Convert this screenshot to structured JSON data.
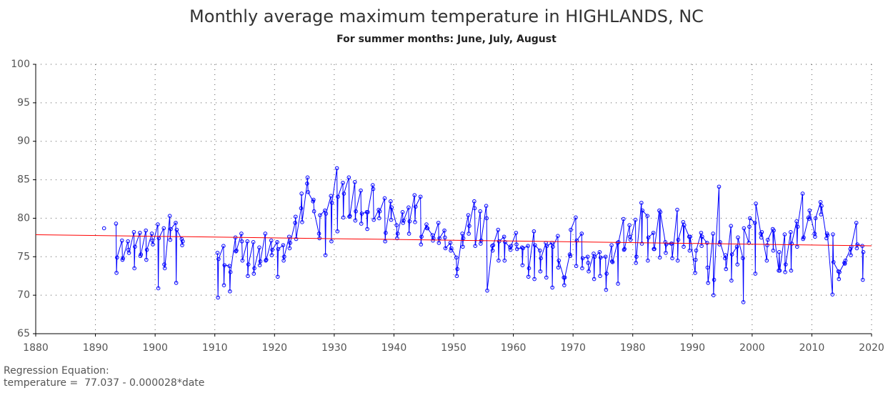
{
  "chart_data": {
    "type": "line",
    "title": "Monthly average maximum temperature in HIGHLANDS, NC",
    "subtitle": "For summer months: June, July, August",
    "annotations": [
      "Regression Equation:",
      "temperature =  77.037 - 0.000028*date"
    ],
    "xlim": [
      1880,
      2020
    ],
    "xticks": [
      1880,
      1890,
      1900,
      1910,
      1920,
      1930,
      1940,
      1950,
      1960,
      1970,
      1980,
      1990,
      2000,
      2010,
      2020
    ],
    "ylim": [
      65,
      100
    ],
    "yticks": [
      65,
      70,
      75,
      80,
      85,
      90,
      95,
      100
    ],
    "grid": true,
    "series": [
      {
        "color": "#0000ff",
        "markers": true,
        "x": [
          1891.45,
          1892,
          1893.45,
          1893.53,
          1893.62,
          1894.45,
          1894.53,
          1894.62,
          1895.45,
          1895.53,
          1895.62,
          1896.45,
          1896.53,
          1896.62,
          1897.45,
          1897.53,
          1897.62,
          1898.45,
          1898.53,
          1898.62,
          1899.45,
          1899.53,
          1899.62,
          1900.45,
          1900.53,
          1900.62,
          1901.45,
          1901.53,
          1901.62,
          1902.45,
          1902.53,
          1902.62,
          1903.45,
          1903.53,
          1903.62,
          1904.45,
          1904.53,
          1904.62,
          1907,
          1910.45,
          1910.53,
          1910.62,
          1911.45,
          1911.53,
          1911.62,
          1912.45,
          1912.53,
          1912.62,
          1913.45,
          1913.53,
          1913.62,
          1914.45,
          1914.53,
          1914.62,
          1915.45,
          1915.53,
          1915.62,
          1916.45,
          1916.53,
          1916.62,
          1917.45,
          1917.53,
          1917.62,
          1918.45,
          1918.53,
          1918.62,
          1919.45,
          1919.53,
          1919.62,
          1920.45,
          1920.53,
          1920.62,
          1921.45,
          1921.53,
          1921.62,
          1922.45,
          1922.53,
          1922.62,
          1923.45,
          1923.53,
          1923.62,
          1924.45,
          1924.53,
          1924.62,
          1925.45,
          1925.53,
          1925.62,
          1926.45,
          1926.53,
          1926.62,
          1927.45,
          1927.53,
          1927.62,
          1928.45,
          1928.53,
          1928.62,
          1929.45,
          1929.53,
          1929.62,
          1930.45,
          1930.53,
          1930.62,
          1931.45,
          1931.53,
          1931.62,
          1932.45,
          1932.53,
          1932.62,
          1933.45,
          1933.53,
          1933.62,
          1934.45,
          1934.53,
          1934.62,
          1935.45,
          1935.53,
          1935.62,
          1936.45,
          1936.53,
          1936.62,
          1937.45,
          1937.53,
          1937.62,
          1938.45,
          1938.53,
          1938.62,
          1939.45,
          1939.53,
          1939.62,
          1940.45,
          1940.53,
          1940.62,
          1941.45,
          1941.53,
          1941.62,
          1942.45,
          1942.53,
          1942.62,
          1943.45,
          1943.53,
          1943.62,
          1944.45,
          1944.53,
          1944.62,
          1945.45,
          1945.53,
          1945.62,
          1946.45,
          1946.53,
          1946.62,
          1947.45,
          1947.53,
          1947.62,
          1948.45,
          1948.53,
          1948.62,
          1949.45,
          1949.53,
          1949.62,
          1950.45,
          1950.53,
          1950.62,
          1951.45,
          1951.53,
          1951.62,
          1952.45,
          1952.53,
          1952.62,
          1953.45,
          1953.53,
          1953.62,
          1954.45,
          1954.53,
          1954.62,
          1955.45,
          1955.53,
          1955.62,
          1956.45,
          1956.53,
          1956.62,
          1957.45,
          1957.53,
          1957.62,
          1958.45,
          1958.53,
          1958.62,
          1959.45,
          1959.53,
          1959.62,
          1960.45,
          1960.53,
          1960.62,
          1961.45,
          1961.53,
          1961.62,
          1962.45,
          1962.53,
          1962.62,
          1963.45,
          1963.53,
          1963.62,
          1964.45,
          1964.53,
          1964.62,
          1965.45,
          1965.53,
          1965.62,
          1966.45,
          1966.53,
          1966.62,
          1967.45,
          1967.53,
          1967.62,
          1968.45,
          1968.53,
          1968.62,
          1969.45,
          1969.53,
          1969.62,
          1970.45,
          1970.53,
          1970.62,
          1971.45,
          1971.53,
          1971.62,
          1972.45,
          1972.53,
          1972.62,
          1973.45,
          1973.53,
          1973.62,
          1974.45,
          1974.53,
          1974.62,
          1975.45,
          1975.53,
          1975.62,
          1976.45,
          1976.53,
          1976.62,
          1977.45,
          1977.53,
          1977.62,
          1978.45,
          1978.53,
          1978.62,
          1979.45,
          1979.53,
          1979.62,
          1980.45,
          1980.53,
          1980.62,
          1981.45,
          1981.53,
          1981.62,
          1982.45,
          1982.53,
          1982.62,
          1983.45,
          1983.53,
          1983.62,
          1984.45,
          1984.53,
          1984.62,
          1985.45,
          1985.53,
          1985.62,
          1986.45,
          1986.53,
          1986.62,
          1987.45,
          1987.53,
          1987.62,
          1988.45,
          1988.53,
          1988.62,
          1989.45,
          1989.53,
          1989.62,
          1990.45,
          1990.53,
          1990.62,
          1991.45,
          1991.53,
          1991.62,
          1992.45,
          1992.53,
          1992.62,
          1993.45,
          1993.53,
          1993.62,
          1994.45,
          1994.53,
          1994.62,
          1995.45,
          1995.53,
          1995.62,
          1996.45,
          1996.53,
          1996.62,
          1997.45,
          1997.53,
          1997.62,
          1998.45,
          1998.53,
          1998.62,
          1999.45,
          1999.53,
          1999.62,
          2000.45,
          2000.53,
          2000.62,
          2001.45,
          2001.53,
          2001.62,
          2002.45,
          2002.53,
          2002.62,
          2003.45,
          2003.53,
          2003.62,
          2004.45,
          2004.53,
          2004.62,
          2005.45,
          2005.53,
          2005.62,
          2006.45,
          2006.53,
          2006.62,
          2007.45,
          2007.53,
          2007.62,
          2008.45,
          2008.53,
          2008.62,
          2009.45,
          2009.53,
          2009.62,
          2010.45,
          2010.53,
          2010.62,
          2011.45,
          2011.53,
          2011.62,
          2012.45,
          2012.53,
          2012.62,
          2013.45,
          2013.53,
          2013.62,
          2014.45,
          2014.53,
          2014.62,
          2015.45,
          2015.53,
          2015.62,
          2016.45,
          2016.53,
          2016.62,
          2017.45,
          2017.53,
          2017.62,
          2018.45,
          2018.53,
          2018.62
        ],
        "values": [
          78.7,
          null,
          79.3,
          72.9,
          74.9,
          77.1,
          74.6,
          74.8,
          77.0,
          75.9,
          75.5,
          78.2,
          73.5,
          76.3,
          78.1,
          75.1,
          75.3,
          78.4,
          74.6,
          75.9,
          78.0,
          77.1,
          76.6,
          79.2,
          70.9,
          77.4,
          78.7,
          74.0,
          73.5,
          80.3,
          77.2,
          78.6,
          79.4,
          71.6,
          78.5,
          77.3,
          76.5,
          77.0,
          null,
          75.5,
          69.7,
          74.7,
          76.4,
          71.3,
          73.9,
          73.8,
          70.5,
          73.0,
          77.5,
          75.7,
          75.8,
          78.0,
          77.0,
          74.5,
          77.0,
          72.5,
          74.0,
          76.9,
          72.8,
          73.5,
          76.2,
          73.9,
          74.4,
          78.0,
          74.5,
          74.6,
          77.1,
          75.2,
          75.9,
          76.9,
          72.4,
          76.0,
          76.5,
          74.5,
          75.0,
          77.6,
          76.1,
          76.8,
          79.4,
          80.2,
          77.3,
          81.3,
          83.2,
          79.5,
          84.5,
          85.3,
          83.4,
          82.2,
          82.4,
          80.9,
          78.0,
          77.4,
          80.4,
          81.0,
          75.2,
          80.6,
          82.9,
          77.0,
          82.0,
          86.5,
          78.3,
          82.8,
          84.6,
          80.1,
          83.2,
          85.3,
          80.2,
          80.3,
          84.7,
          79.7,
          80.9,
          83.6,
          79.3,
          80.6,
          80.8,
          78.6,
          80.8,
          84.3,
          83.8,
          79.8,
          81.1,
          80.0,
          80.9,
          82.6,
          77.0,
          78.1,
          82.2,
          79.8,
          81.4,
          79.1,
          77.4,
          78.0,
          80.8,
          79.4,
          79.7,
          81.4,
          78.0,
          79.6,
          83.0,
          79.5,
          81.5,
          82.8,
          76.6,
          77.6,
          79.2,
          78.7,
          78.7,
          77.8,
          77.1,
          77.4,
          79.4,
          76.8,
          77.4,
          78.4,
          77.5,
          76.1,
          76.8,
          75.8,
          76.1,
          74.9,
          72.5,
          73.4,
          78.0,
          76.3,
          77.4,
          80.4,
          78.0,
          79.0,
          82.2,
          81.3,
          76.4,
          80.9,
          76.7,
          77.1,
          81.6,
          80.0,
          70.6,
          76.4,
          75.8,
          76.5,
          78.5,
          74.5,
          77.0,
          77.6,
          74.5,
          76.9,
          76.2,
          75.9,
          76.4,
          78.1,
          76.6,
          76.0,
          76.2,
          73.9,
          76.1,
          76.4,
          72.4,
          73.5,
          78.3,
          72.1,
          76.5,
          75.8,
          73.1,
          74.8,
          76.8,
          72.3,
          76.4,
          76.8,
          71.0,
          76.3,
          77.7,
          73.6,
          74.5,
          72.3,
          71.3,
          72.3,
          75.3,
          75.1,
          78.5,
          80.1,
          73.8,
          77.1,
          78.0,
          73.5,
          74.8,
          75.0,
          74.2,
          73.1,
          75.4,
          72.1,
          75.0,
          75.6,
          72.5,
          74.9,
          75.0,
          70.7,
          72.8,
          76.5,
          74.4,
          74.3,
          76.8,
          71.5,
          76.9,
          79.9,
          75.9,
          76.0,
          79.1,
          77.6,
          77.2,
          79.8,
          74.2,
          75.0,
          82.0,
          76.7,
          81.0,
          80.3,
          74.5,
          77.5,
          78.1,
          76.0,
          76.0,
          81.0,
          74.9,
          80.8,
          76.9,
          75.5,
          76.6,
          76.7,
          76.7,
          74.8,
          81.1,
          74.5,
          77.2,
          79.5,
          76.3,
          79.1,
          77.6,
          75.8,
          77.6,
          72.9,
          74.6,
          75.8,
          78.1,
          76.4,
          77.6,
          76.8,
          73.6,
          71.6,
          78.0,
          70.0,
          72.0,
          84.1,
          76.6,
          76.9,
          74.8,
          75.2,
          73.4,
          79.0,
          71.9,
          75.3,
          76.3,
          74.0,
          77.5,
          74.8,
          69.1,
          78.7,
          76.8,
          78.9,
          80.0,
          79.4,
          72.8,
          81.9,
          78.0,
          77.5,
          78.2,
          74.5,
          76.5,
          77.2,
          78.6,
          75.8,
          78.4,
          73.2,
          75.6,
          73.2,
          77.9,
          73.0,
          74.0,
          78.2,
          73.2,
          76.7,
          79.6,
          76.3,
          78.9,
          83.2,
          77.3,
          77.5,
          80.1,
          79.9,
          81.0,
          78.0,
          77.6,
          80.0,
          82.1,
          80.5,
          81.6,
          77.4,
          78.0,
          77.8,
          70.1,
          77.9,
          74.3,
          73.1,
          72.1,
          73.0,
          74.2,
          74.1,
          74.5,
          76.0,
          75.2,
          76.3,
          79.4,
          76.1,
          76.6,
          76.4,
          72.0,
          75.6
        ]
      },
      {
        "color": "#ff0000",
        "markers": false,
        "x": [
          1880,
          2020
        ],
        "values": [
          77.86,
          76.42
        ]
      }
    ]
  }
}
